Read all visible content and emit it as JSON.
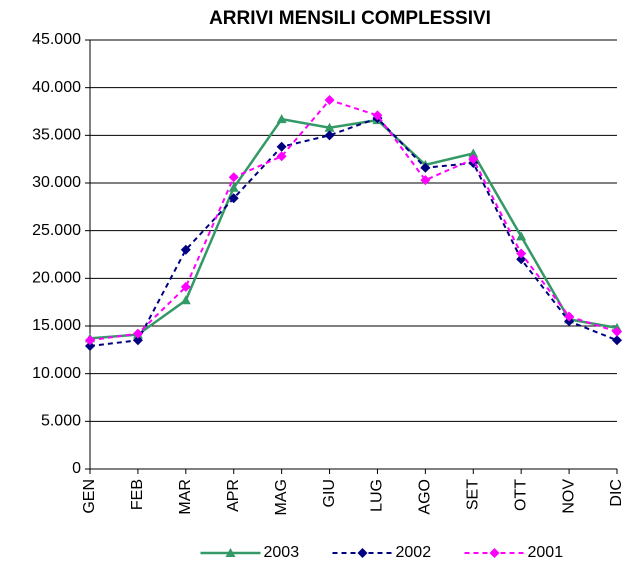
{
  "chart_data": {
    "type": "line",
    "title": "ARRIVI MENSILI COMPLESSIVI",
    "categories": [
      "GEN",
      "FEB",
      "MAR",
      "APR",
      "MAG",
      "GIU",
      "LUG",
      "AGO",
      "SET",
      "OTT",
      "NOV",
      "DIC"
    ],
    "series": [
      {
        "name": "2003",
        "color": "#339966",
        "marker": "triangle",
        "dashed": false,
        "values": [
          13700,
          14100,
          17700,
          29500,
          36700,
          35800,
          36600,
          31900,
          33100,
          24400,
          15700,
          14800
        ]
      },
      {
        "name": "2002",
        "color": "#000080",
        "marker": "diamond",
        "dashed": true,
        "values": [
          12900,
          13500,
          23000,
          28400,
          33800,
          35000,
          36800,
          31600,
          32100,
          22000,
          15500,
          13500
        ]
      },
      {
        "name": "2001",
        "color": "#ff00ff",
        "marker": "diamond",
        "dashed": true,
        "values": [
          13500,
          14200,
          19100,
          30600,
          32800,
          38700,
          37100,
          30300,
          32500,
          22600,
          16000,
          14400
        ]
      }
    ],
    "ylim": [
      0,
      45000
    ],
    "yticks": [
      0,
      {
        "value": 5000,
        "label": "5.000"
      },
      {
        "value": 10000,
        "label": "10.000"
      },
      {
        "value": 15000,
        "label": "15.000"
      },
      {
        "value": 20000,
        "label": "20.000"
      },
      {
        "value": 25000,
        "label": "25.000"
      },
      {
        "value": 30000,
        "label": "30.000"
      },
      {
        "value": 35000,
        "label": "35.000"
      },
      {
        "value": 40000,
        "label": "40.000"
      },
      {
        "value": 45000,
        "label": "45.000"
      }
    ],
    "grid": true,
    "legend": "bottom"
  }
}
